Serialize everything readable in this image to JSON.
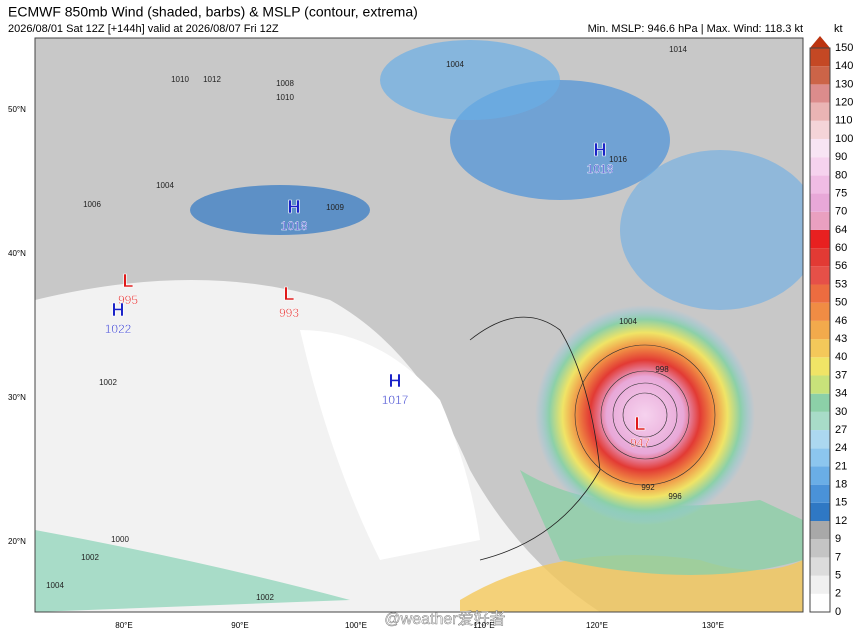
{
  "header": {
    "title": "ECMWF 850mb Wind (shaded, barbs) & MSLP (contour, extrema)",
    "subtitle": "2026/08/01 Sat 12Z [+144h] valid at 2026/08/07 Fri 12Z",
    "info": "Min. MSLP: 946.6 hPa | Max. Wind: 118.3 kt"
  },
  "colorbar": {
    "unit": "kt",
    "levels": [
      0,
      2,
      5,
      7,
      9,
      12,
      15,
      18,
      21,
      24,
      27,
      30,
      34,
      37,
      40,
      43,
      46,
      50,
      53,
      56,
      60,
      64,
      70,
      75,
      80,
      90,
      100,
      110,
      120,
      130,
      140,
      150
    ],
    "colors": [
      "#ffffff",
      "#f0f0f0",
      "#dcdcdc",
      "#c4c4c4",
      "#a8a8a8",
      "#2f78c4",
      "#4a92d8",
      "#6aaee6",
      "#8cc6ee",
      "#acd8f0",
      "#a8dcc8",
      "#8cd0a8",
      "#c8e27a",
      "#f0e466",
      "#f4c85a",
      "#f2aa4c",
      "#f08c44",
      "#ec6c40",
      "#e65048",
      "#e23a34",
      "#e82020",
      "#eaa0c0",
      "#e8a8d8",
      "#f0bce4",
      "#f6d2ee",
      "#f8e4f4",
      "#f4d4d8",
      "#eab4b4",
      "#dc8c8c",
      "#cc6448",
      "#c44824",
      "#bc3410"
    ]
  },
  "map": {
    "lat_labels": [
      "50°N",
      "40°N",
      "30°N",
      "20°N"
    ],
    "lon_labels": [
      "80°E",
      "90°E",
      "100°E",
      "110°E",
      "120°E",
      "130°E"
    ],
    "systems": [
      {
        "kind": "H",
        "pressure": 1018
      },
      {
        "kind": "H",
        "pressure": 1018
      },
      {
        "kind": "L",
        "pressure": 995
      },
      {
        "kind": "H",
        "pressure": 1022
      },
      {
        "kind": "L",
        "pressure": 993
      },
      {
        "kind": "H",
        "pressure": 1017
      },
      {
        "kind": "L",
        "pressure": 947
      }
    ],
    "contour_labels": [
      "1010",
      "1012",
      "1008",
      "1010",
      "1004",
      "1006",
      "1009",
      "1004",
      "1014",
      "1016",
      "1004",
      "998",
      "992",
      "996",
      "1002",
      "1000",
      "1002",
      "1004",
      "1002"
    ],
    "watermark": "@weather爱好者"
  }
}
